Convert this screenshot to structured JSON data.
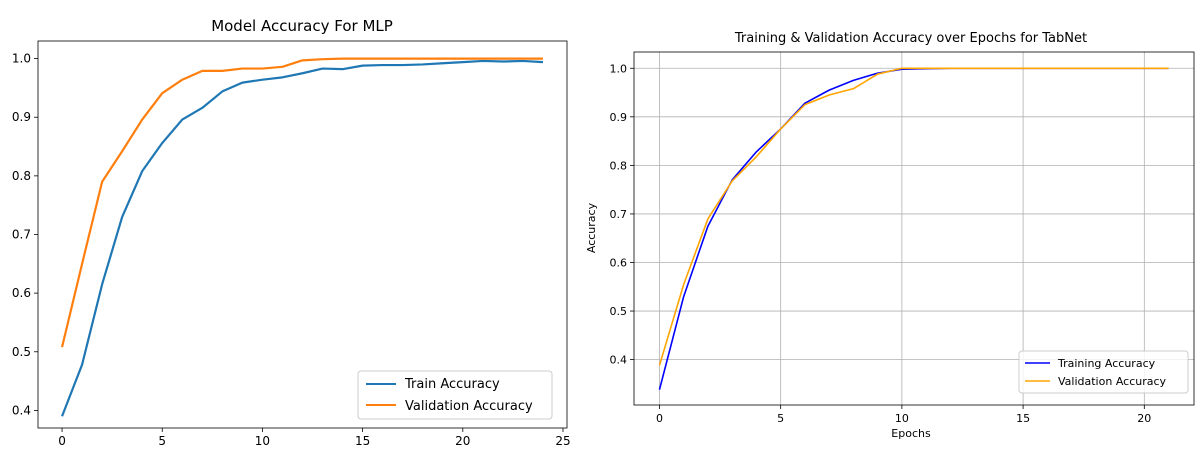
{
  "chart_data": [
    {
      "type": "line",
      "title": "Model Accuracy For MLP",
      "xlabel": "",
      "ylabel": "",
      "xlim": [
        -1.2,
        25.2
      ],
      "ylim": [
        0.37,
        1.03
      ],
      "xticks": [
        0,
        5,
        10,
        15,
        20,
        25
      ],
      "yticks": [
        0.4,
        0.5,
        0.6,
        0.7,
        0.8,
        0.9,
        1.0
      ],
      "grid": false,
      "legend_position": "lower right",
      "x": [
        0,
        1,
        2,
        3,
        4,
        5,
        6,
        7,
        8,
        9,
        10,
        11,
        12,
        13,
        14,
        15,
        16,
        17,
        18,
        19,
        20,
        21,
        22,
        23,
        24
      ],
      "series": [
        {
          "name": "Train Accuracy",
          "color": "#1f77b4",
          "values": [
            0.39,
            0.478,
            0.615,
            0.73,
            0.808,
            0.856,
            0.896,
            0.916,
            0.944,
            0.959,
            0.964,
            0.968,
            0.975,
            0.983,
            0.982,
            0.988,
            0.989,
            0.989,
            0.99,
            0.992,
            0.994,
            0.996,
            0.995,
            0.996,
            0.994
          ]
        },
        {
          "name": "Validation Accuracy",
          "color": "#ff7f0e",
          "values": [
            0.508,
            0.65,
            0.79,
            0.842,
            0.896,
            0.941,
            0.964,
            0.979,
            0.979,
            0.983,
            0.983,
            0.986,
            0.997,
            0.999,
            1.0,
            1.0,
            1.0,
            1.0,
            1.0,
            1.0,
            1.0,
            1.0,
            1.0,
            1.0,
            1.0
          ]
        }
      ]
    },
    {
      "type": "line",
      "title": "Training & Validation Accuracy over Epochs for TabNet",
      "xlabel": "Epochs",
      "ylabel": "Accuracy",
      "xlim": [
        -1.05,
        22.05
      ],
      "ylim": [
        0.3065,
        1.0335
      ],
      "xticks": [
        0,
        5,
        10,
        15,
        20
      ],
      "yticks": [
        0.4,
        0.5,
        0.6,
        0.7,
        0.8,
        0.9,
        1.0
      ],
      "grid": true,
      "legend_position": "lower right",
      "x": [
        0,
        1,
        2,
        3,
        4,
        5,
        6,
        7,
        8,
        9,
        10,
        11,
        12,
        13,
        14,
        15,
        16,
        17,
        18,
        19,
        20,
        21
      ],
      "series": [
        {
          "name": "Training Accuracy",
          "color": "#0000ff",
          "values": [
            0.338,
            0.53,
            0.675,
            0.77,
            0.828,
            0.875,
            0.928,
            0.955,
            0.975,
            0.99,
            0.998,
            0.999,
            1.0,
            1.0,
            1.0,
            1.0,
            1.0,
            1.0,
            1.0,
            1.0,
            1.0,
            1.0
          ]
        },
        {
          "name": "Validation Accuracy",
          "color": "#ffa500",
          "values": [
            0.388,
            0.555,
            0.69,
            0.768,
            0.818,
            0.875,
            0.925,
            0.945,
            0.958,
            0.988,
            1.0,
            1.0,
            1.0,
            1.0,
            1.0,
            1.0,
            1.0,
            1.0,
            1.0,
            1.0,
            1.0,
            1.0
          ]
        }
      ]
    }
  ]
}
